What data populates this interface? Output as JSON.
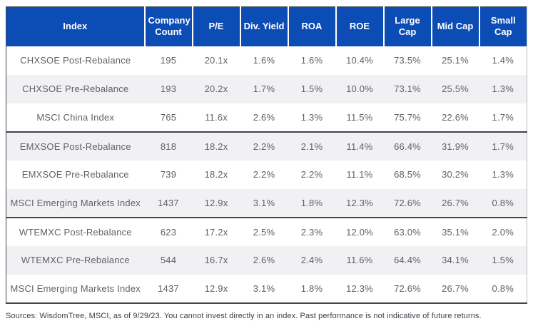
{
  "colors": {
    "header_bg": "#0c4cb5",
    "header_text": "#ffffff",
    "body_text": "#5d6369",
    "alt_row_bg": "#f1f1f3",
    "dark_border": "#3e454e",
    "light_border": "#b7babe"
  },
  "chart_data": {
    "type": "table",
    "title": "",
    "columns": [
      "Index",
      "Company Count",
      "P/E",
      "Div. Yield",
      "ROA",
      "ROE",
      "Large Cap",
      "Mid Cap",
      "Small Cap"
    ],
    "groups": [
      {
        "rows": [
          [
            "CHXSOE Post-Rebalance",
            "195",
            "20.1x",
            "1.6%",
            "1.6%",
            "10.4%",
            "73.5%",
            "25.1%",
            "1.4%"
          ],
          [
            "CHXSOE Pre-Rebalance",
            "193",
            "20.2x",
            "1.7%",
            "1.5%",
            "10.0%",
            "73.1%",
            "25.5%",
            "1.3%"
          ],
          [
            "MSCI China Index",
            "765",
            "11.6x",
            "2.6%",
            "1.3%",
            "11.5%",
            "75.7%",
            "22.6%",
            "1.7%"
          ]
        ]
      },
      {
        "rows": [
          [
            "EMXSOE Post-Rebalance",
            "818",
            "18.2x",
            "2.2%",
            "2.1%",
            "11.4%",
            "66.4%",
            "31.9%",
            "1.7%"
          ],
          [
            "EMXSOE Pre-Rebalance",
            "739",
            "18.2x",
            "2.2%",
            "2.2%",
            "11.1%",
            "68.5%",
            "30.2%",
            "1.3%"
          ],
          [
            "MSCI Emerging Markets Index",
            "1437",
            "12.9x",
            "3.1%",
            "1.8%",
            "12.3%",
            "72.6%",
            "26.7%",
            "0.8%"
          ]
        ]
      },
      {
        "rows": [
          [
            "WTEMXC Post-Rebalance",
            "623",
            "17.2x",
            "2.5%",
            "2.3%",
            "12.0%",
            "63.0%",
            "35.1%",
            "2.0%"
          ],
          [
            "WTEMXC Pre-Rebalance",
            "544",
            "16.7x",
            "2.6%",
            "2.4%",
            "11.6%",
            "64.4%",
            "34.1%",
            "1.5%"
          ],
          [
            "MSCI Emerging Markets Index",
            "1437",
            "12.9x",
            "3.1%",
            "1.8%",
            "12.3%",
            "72.6%",
            "26.7%",
            "0.8%"
          ]
        ]
      }
    ]
  },
  "footer": {
    "text": "Sources: WisdomTree, MSCI, as of 9/29/23. You cannot invest directly in an index. Past performance is not indicative of future returns."
  }
}
